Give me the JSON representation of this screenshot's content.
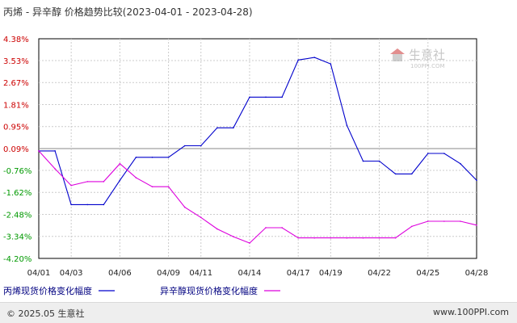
{
  "chart_data": {
    "type": "line",
    "title": "丙烯 - 异辛醇 价格趋势比较(2023-04-01 - 2023-04-28)",
    "y_ticks": [
      "4.38%",
      "3.53%",
      "2.67%",
      "1.81%",
      "0.95%",
      "0.09%",
      "-0.76%",
      "-1.62%",
      "-2.48%",
      "-3.34%",
      "-4.20%"
    ],
    "ylim": [
      -4.2,
      4.38
    ],
    "x_ticks": [
      "04/01",
      "04/03",
      "04/06",
      "04/09",
      "04/11",
      "04/14",
      "04/17",
      "04/19",
      "04/22",
      "04/25",
      "04/28"
    ],
    "xlim": [
      1,
      28
    ],
    "series": [
      {
        "name": "丙烯现货价格变化幅度",
        "color": "#0000cc",
        "x": [
          1,
          2,
          3,
          4,
          5,
          6,
          7,
          8,
          9,
          10,
          11,
          12,
          13,
          14,
          15,
          16,
          17,
          18,
          19,
          20,
          21,
          22,
          23,
          24,
          25,
          26,
          27,
          28
        ],
        "y": [
          0.0,
          0.0,
          -2.1,
          -2.1,
          -2.1,
          -1.15,
          -0.25,
          -0.25,
          -0.25,
          0.2,
          0.2,
          0.9,
          0.9,
          2.1,
          2.1,
          2.1,
          3.55,
          3.65,
          3.4,
          1.0,
          -0.4,
          -0.4,
          -0.9,
          -0.9,
          -0.1,
          -0.1,
          -0.5,
          -1.15
        ]
      },
      {
        "name": "异辛醇现货价格变化幅度",
        "color": "#dd00dd",
        "x": [
          1,
          2,
          3,
          4,
          5,
          6,
          7,
          8,
          9,
          10,
          11,
          12,
          13,
          14,
          15,
          16,
          17,
          18,
          19,
          20,
          21,
          22,
          23,
          24,
          25,
          26,
          27,
          28
        ],
        "y": [
          0.0,
          -0.7,
          -1.35,
          -1.2,
          -1.2,
          -0.5,
          -1.05,
          -1.4,
          -1.4,
          -2.2,
          -2.6,
          -3.05,
          -3.35,
          -3.6,
          -3.0,
          -3.0,
          -3.4,
          -3.4,
          -3.4,
          -3.4,
          -3.4,
          -3.4,
          -3.4,
          -2.95,
          -2.75,
          -2.75,
          -2.75,
          -2.9
        ]
      }
    ],
    "grid": true,
    "legend": "bottom-left"
  },
  "footer": {
    "copyright": "© 2025.05 生意社",
    "site": "www.100PPI.com"
  },
  "watermark": {
    "name": "生意社",
    "url": "100PPI.COM"
  },
  "colors": {
    "up_tick": "#cc0000",
    "down_tick": "#009900",
    "baseline_tick": "#cc0000",
    "grid": "#cccccc",
    "axis": "#000000"
  }
}
